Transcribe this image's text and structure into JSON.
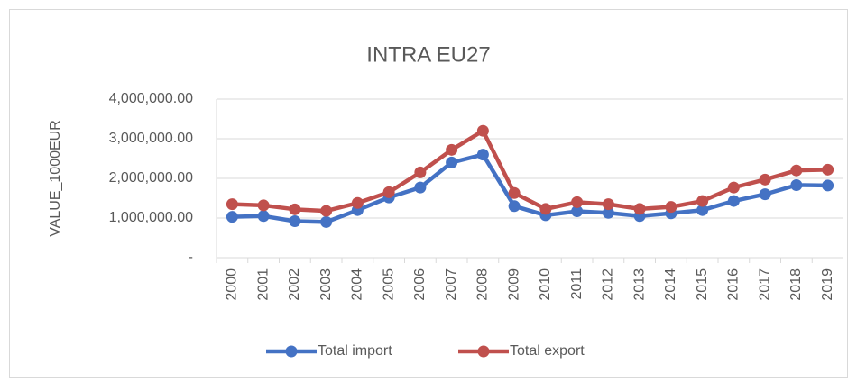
{
  "chart_data": {
    "type": "line",
    "title": "INTRA EU27",
    "y_label": "VALUE_1000EUR",
    "categories": [
      "2000",
      "2001",
      "2002",
      "2003",
      "2004",
      "2005",
      "2006",
      "2007",
      "2008",
      "2009",
      "2010",
      "2011",
      "2012",
      "2013",
      "2014",
      "2015",
      "2016",
      "2017",
      "2018",
      "2019"
    ],
    "series": [
      {
        "name": "Total import",
        "color": "#4472c4",
        "values": [
          1030000,
          1050000,
          920000,
          900000,
          1200000,
          1520000,
          1770000,
          2400000,
          2600000,
          1300000,
          1070000,
          1170000,
          1130000,
          1050000,
          1120000,
          1200000,
          1430000,
          1600000,
          1830000,
          1820000
        ]
      },
      {
        "name": "Total export",
        "color": "#c0504d",
        "values": [
          1350000,
          1320000,
          1220000,
          1180000,
          1380000,
          1650000,
          2150000,
          2720000,
          3200000,
          1630000,
          1230000,
          1400000,
          1350000,
          1230000,
          1280000,
          1430000,
          1770000,
          1970000,
          2200000,
          2220000
        ]
      }
    ],
    "ylim": [
      0,
      4000000
    ],
    "yticks": [
      {
        "value": 0,
        "label": "-"
      },
      {
        "value": 1000000,
        "label": "1,000,000.00"
      },
      {
        "value": 2000000,
        "label": "2,000,000.00"
      },
      {
        "value": 3000000,
        "label": "3,000,000.00"
      },
      {
        "value": 4000000,
        "label": "4,000,000.00"
      }
    ],
    "grid": true,
    "legend": "bottom"
  }
}
